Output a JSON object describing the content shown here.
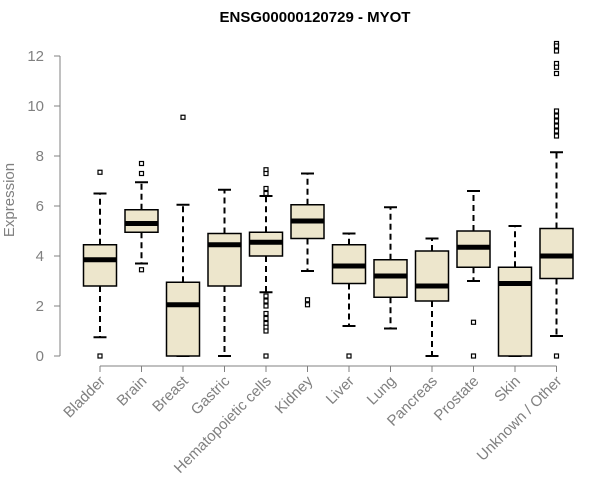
{
  "chart_data": {
    "type": "boxplot",
    "title": "ENSG00000120729 - MYOT",
    "xlabel": "",
    "ylabel": "Expression",
    "ylim": [
      0,
      12.5
    ],
    "yticks": [
      0,
      2,
      4,
      6,
      8,
      10,
      12
    ],
    "box_color": "#ede6cc",
    "categories": [
      "Bladder",
      "Brain",
      "Breast",
      "Gastric",
      "Hematopoietic cells",
      "Kidney",
      "Liver",
      "Lung",
      "Pancreas",
      "Prostate",
      "Skin",
      "Unknown / Other"
    ],
    "boxes": [
      {
        "label": "Bladder",
        "whisker_low": 0.75,
        "q1": 2.8,
        "median": 3.85,
        "q3": 4.45,
        "whisker_high": 6.5,
        "outliers": [
          7.35,
          0.0
        ]
      },
      {
        "label": "Brain",
        "whisker_low": 3.7,
        "q1": 4.95,
        "median": 5.3,
        "q3": 5.85,
        "whisker_high": 6.95,
        "outliers": [
          7.7,
          7.3,
          3.45
        ]
      },
      {
        "label": "Breast",
        "whisker_low": 0.0,
        "q1": 0.0,
        "median": 2.05,
        "q3": 2.95,
        "whisker_high": 6.05,
        "outliers": [
          9.55
        ]
      },
      {
        "label": "Gastric",
        "whisker_low": 0.0,
        "q1": 2.8,
        "median": 4.45,
        "q3": 4.9,
        "whisker_high": 6.65,
        "outliers": []
      },
      {
        "label": "Hematopoietic cells",
        "whisker_low": 2.55,
        "q1": 4.0,
        "median": 4.55,
        "q3": 4.95,
        "whisker_high": 6.4,
        "outliers": [
          7.45,
          7.3,
          6.7,
          6.5,
          2.4,
          2.2,
          2.0,
          1.7,
          1.5,
          1.3,
          1.15,
          1.0,
          0.0
        ]
      },
      {
        "label": "Kidney",
        "whisker_low": 3.4,
        "q1": 4.7,
        "median": 5.4,
        "q3": 6.05,
        "whisker_high": 7.3,
        "outliers": [
          2.25,
          2.05
        ]
      },
      {
        "label": "Liver",
        "whisker_low": 1.2,
        "q1": 2.9,
        "median": 3.6,
        "q3": 4.45,
        "whisker_high": 4.9,
        "outliers": [
          0.0
        ]
      },
      {
        "label": "Lung",
        "whisker_low": 1.1,
        "q1": 2.35,
        "median": 3.2,
        "q3": 3.85,
        "whisker_high": 5.95,
        "outliers": []
      },
      {
        "label": "Pancreas",
        "whisker_low": 0.0,
        "q1": 2.2,
        "median": 2.8,
        "q3": 4.2,
        "whisker_high": 4.7,
        "outliers": []
      },
      {
        "label": "Prostate",
        "whisker_low": 3.0,
        "q1": 3.55,
        "median": 4.35,
        "q3": 5.0,
        "whisker_high": 6.6,
        "outliers": [
          1.35,
          0.0
        ]
      },
      {
        "label": "Skin",
        "whisker_low": 0.0,
        "q1": 0.0,
        "median": 2.9,
        "q3": 3.55,
        "whisker_high": 5.2,
        "outliers": []
      },
      {
        "label": "Unknown / Other",
        "whisker_low": 0.8,
        "q1": 3.1,
        "median": 4.0,
        "q3": 5.1,
        "whisker_high": 8.15,
        "outliers": [
          12.5,
          12.4,
          12.2,
          11.7,
          11.55,
          11.3,
          9.8,
          9.6,
          9.4,
          9.2,
          9.0,
          8.8,
          0.0
        ]
      }
    ]
  }
}
